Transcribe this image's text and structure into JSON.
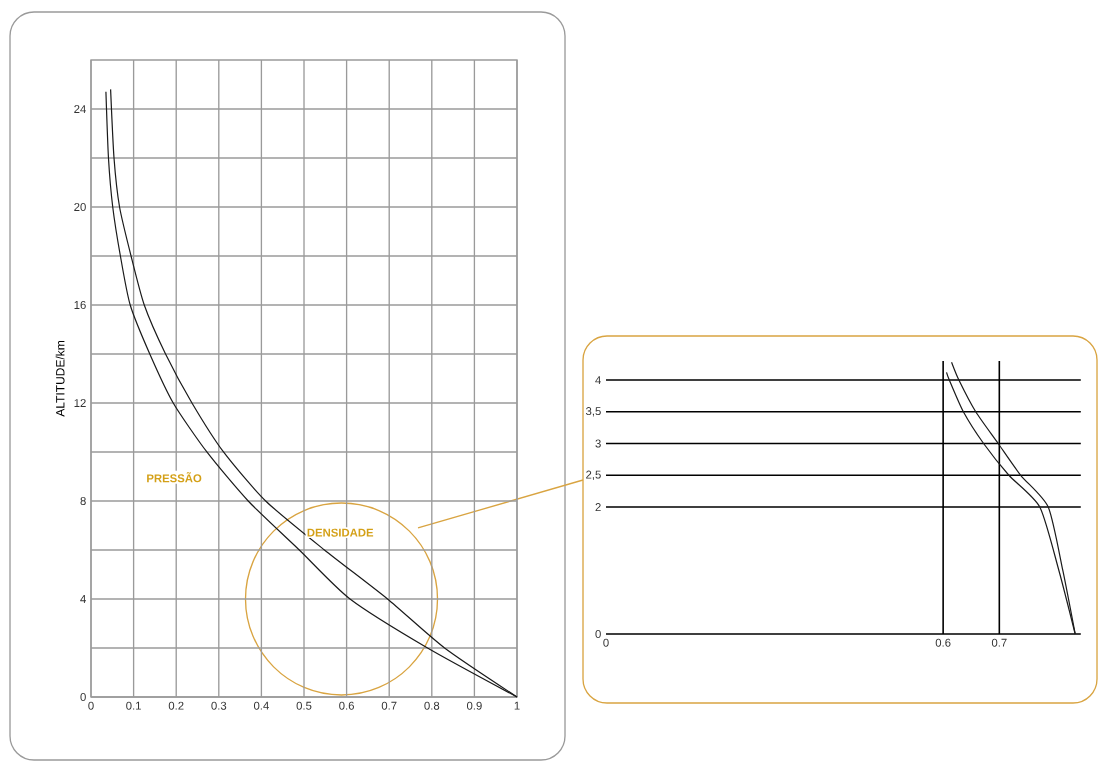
{
  "chart_data": [
    {
      "type": "line",
      "ylabel": "ALTITUDE/km",
      "xlim": [
        0,
        1
      ],
      "xticks": [
        0,
        0.1,
        0.2,
        0.3,
        0.4,
        0.5,
        0.6,
        0.7,
        0.8,
        0.9,
        1
      ],
      "ylim": [
        0,
        26
      ],
      "yticks": [
        0,
        {
          "value": 2,
          "label": null
        },
        4,
        {
          "value": 6,
          "label": null
        },
        8,
        {
          "value": 10,
          "label": null
        },
        12,
        {
          "value": 14,
          "label": null
        },
        16,
        {
          "value": 18,
          "label": null
        },
        20,
        {
          "value": 22,
          "label": null
        },
        24
      ],
      "grid": true,
      "annotations": [
        "PRESSÃO",
        "DENSIDADE"
      ],
      "series": [
        {
          "color": "#1a1a1a",
          "x": [
            1,
            0.79,
            0.608,
            0.489,
            0.369,
            0.272,
            0.193,
            0.138,
            0.092,
            0.069,
            0.051,
            0.041,
            0.035
          ],
          "values": [
            0,
            2,
            4,
            6,
            8,
            10,
            12,
            14,
            16,
            18,
            20,
            22,
            24.7
          ]
        },
        {
          "color": "#1a1a1a",
          "x": [
            1,
            0.83,
            0.696,
            0.548,
            0.41,
            0.311,
            0.237,
            0.175,
            0.125,
            0.094,
            0.067,
            0.054,
            0.046
          ],
          "values": [
            0,
            2,
            4,
            6,
            8,
            10,
            12,
            14,
            16,
            18,
            20,
            22,
            24.8
          ]
        }
      ]
    },
    {
      "type": "line",
      "xlim": [
        0,
        0.845
      ],
      "xticks": [
        0,
        0.6,
        0.7
      ],
      "ylim": [
        0,
        4.3
      ],
      "yticks": [
        0,
        2,
        {
          "value": 2.5,
          "label": "2,5"
        },
        3,
        {
          "value": 3.5,
          "label": "3,5"
        },
        4
      ],
      "grid": "y",
      "ref_lines": [
        {
          "axis": "x",
          "value": 0.6,
          "color": "#000000"
        },
        {
          "axis": "x",
          "value": 0.7,
          "color": "#000000"
        }
      ],
      "series": [
        {
          "color": "#1a1a1a",
          "x": [
            0.835,
            0.806,
            0.772,
            0.717,
            0.672,
            0.636,
            0.611,
            0.606
          ],
          "values": [
            0,
            1,
            2,
            2.5,
            3,
            3.5,
            4,
            4.12
          ]
        },
        {
          "color": "#1a1a1a",
          "x": [
            0.835,
            0.813,
            0.787,
            0.738,
            0.698,
            0.658,
            0.628,
            0.615
          ],
          "values": [
            0,
            1,
            2,
            2.5,
            3,
            3.5,
            4,
            4.28
          ]
        }
      ]
    }
  ]
}
